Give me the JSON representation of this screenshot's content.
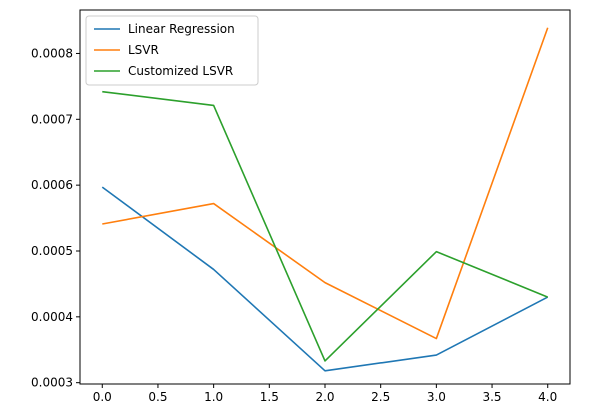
{
  "chart_data": {
    "type": "line",
    "title": "",
    "xlabel": "",
    "ylabel": "",
    "x": [
      0,
      1,
      2,
      3,
      4
    ],
    "xlim": [
      -0.2,
      4.2
    ],
    "ylim": [
      0.000298,
      0.000866
    ],
    "xticks": [
      {
        "value": 0.0,
        "label": "0.0"
      },
      {
        "value": 0.5,
        "label": "0.5"
      },
      {
        "value": 1.0,
        "label": "1.0"
      },
      {
        "value": 1.5,
        "label": "1.5"
      },
      {
        "value": 2.0,
        "label": "2.0"
      },
      {
        "value": 2.5,
        "label": "2.5"
      },
      {
        "value": 3.0,
        "label": "3.0"
      },
      {
        "value": 3.5,
        "label": "3.5"
      },
      {
        "value": 4.0,
        "label": "4.0"
      }
    ],
    "yticks": [
      {
        "value": 0.0003,
        "label": "0.0003"
      },
      {
        "value": 0.0004,
        "label": "0.0004"
      },
      {
        "value": 0.0005,
        "label": "0.0005"
      },
      {
        "value": 0.0006,
        "label": "0.0006"
      },
      {
        "value": 0.0007,
        "label": "0.0007"
      },
      {
        "value": 0.0008,
        "label": "0.0008"
      }
    ],
    "grid": false,
    "legend_position": "top-left",
    "series": [
      {
        "name": "Linear Regression",
        "color": "#1f77b4",
        "values": [
          0.000597,
          0.000472,
          0.000318,
          0.000342,
          0.00043
        ]
      },
      {
        "name": "LSVR",
        "color": "#ff7f0e",
        "values": [
          0.000541,
          0.000572,
          0.000452,
          0.000367,
          0.000839
        ]
      },
      {
        "name": "Customized LSVR",
        "color": "#2ca02c",
        "values": [
          0.000742,
          0.000721,
          0.000333,
          0.000499,
          0.00043
        ]
      }
    ]
  }
}
